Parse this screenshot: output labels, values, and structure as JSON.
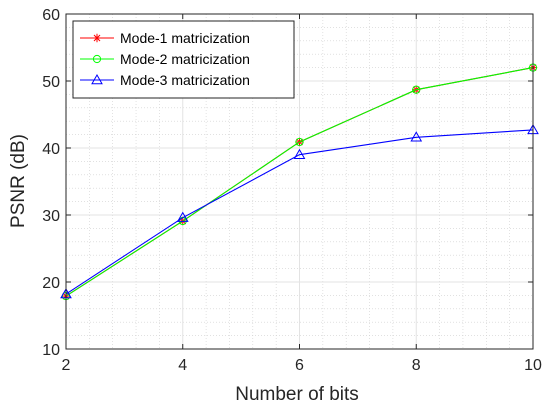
{
  "chart_data": {
    "type": "line",
    "xlabel": "Number of bits",
    "ylabel": "PSNR (dB)",
    "xlim": [
      2,
      10
    ],
    "ylim": [
      10,
      60
    ],
    "x_ticks": [
      2,
      4,
      6,
      8,
      10
    ],
    "y_ticks": [
      10,
      20,
      30,
      40,
      50,
      60
    ],
    "grid": true,
    "minor_grid": true,
    "legend_position": "top-left",
    "x": [
      2,
      4,
      6,
      8,
      10
    ],
    "series": [
      {
        "name": "Mode-1 matricization",
        "color": "#ff0000",
        "marker": "asterisk",
        "values": [
          17.9,
          29.1,
          40.9,
          48.7,
          52.0
        ]
      },
      {
        "name": "Mode-2 matricization",
        "color": "#00ff00",
        "marker": "circle",
        "values": [
          17.9,
          29.1,
          40.9,
          48.7,
          52.0
        ]
      },
      {
        "name": "Mode-3 matricization",
        "color": "#0000ff",
        "marker": "triangle",
        "values": [
          18.2,
          29.6,
          39.0,
          41.6,
          42.7
        ]
      }
    ]
  }
}
